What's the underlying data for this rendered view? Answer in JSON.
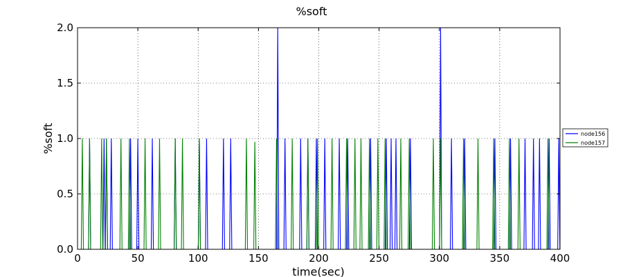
{
  "chart_data": {
    "type": "line",
    "title": "%soft",
    "xlabel": "time(sec)",
    "ylabel": "%soft",
    "xlim": [
      0,
      400
    ],
    "ylim": [
      0,
      2.0
    ],
    "xticks": [
      0,
      50,
      100,
      150,
      200,
      250,
      300,
      350,
      400
    ],
    "xtick_labels": [
      "0",
      "50",
      "100",
      "150",
      "200",
      "250",
      "300",
      "350",
      "400"
    ],
    "yticks": [
      0.0,
      0.5,
      1.0,
      1.5,
      2.0
    ],
    "ytick_labels": [
      "0.0",
      "0.5",
      "1.0",
      "1.5",
      "2.0"
    ],
    "grid": true,
    "legend_position": "right",
    "series": [
      {
        "name": "node156",
        "color": "#0000ff",
        "spikes": [
          {
            "x": 10,
            "y": 1.0
          },
          {
            "x": 22,
            "y": 1.0
          },
          {
            "x": 24,
            "y": 1.0
          },
          {
            "x": 28,
            "y": 1.0
          },
          {
            "x": 44,
            "y": 1.0
          },
          {
            "x": 50,
            "y": 1.0
          },
          {
            "x": 62,
            "y": 1.0
          },
          {
            "x": 81,
            "y": 1.0
          },
          {
            "x": 101,
            "y": 1.0
          },
          {
            "x": 107,
            "y": 1.0
          },
          {
            "x": 121,
            "y": 1.0
          },
          {
            "x": 127,
            "y": 1.0
          },
          {
            "x": 166,
            "y": 2.0
          },
          {
            "x": 172,
            "y": 1.0
          },
          {
            "x": 185,
            "y": 1.0
          },
          {
            "x": 191,
            "y": 1.0
          },
          {
            "x": 198,
            "y": 1.0
          },
          {
            "x": 205,
            "y": 1.0
          },
          {
            "x": 217,
            "y": 1.0
          },
          {
            "x": 224,
            "y": 1.0
          },
          {
            "x": 243,
            "y": 1.0
          },
          {
            "x": 256,
            "y": 1.0
          },
          {
            "x": 260,
            "y": 1.0
          },
          {
            "x": 264,
            "y": 1.0
          },
          {
            "x": 276,
            "y": 1.0
          },
          {
            "x": 301,
            "y": 2.0
          },
          {
            "x": 310,
            "y": 1.0
          },
          {
            "x": 321,
            "y": 1.0
          },
          {
            "x": 346,
            "y": 1.0
          },
          {
            "x": 359,
            "y": 1.0
          },
          {
            "x": 371,
            "y": 1.0
          },
          {
            "x": 378,
            "y": 1.0
          },
          {
            "x": 383,
            "y": 1.0
          },
          {
            "x": 391,
            "y": 1.0
          },
          {
            "x": 399,
            "y": 1.0
          }
        ]
      },
      {
        "name": "node157",
        "color": "#008000",
        "spikes": [
          {
            "x": 4,
            "y": 1.0
          },
          {
            "x": 10,
            "y": 1.0
          },
          {
            "x": 20,
            "y": 1.0
          },
          {
            "x": 24,
            "y": 1.0
          },
          {
            "x": 36,
            "y": 1.0
          },
          {
            "x": 43,
            "y": 1.0
          },
          {
            "x": 56,
            "y": 1.0
          },
          {
            "x": 68,
            "y": 1.0
          },
          {
            "x": 81,
            "y": 1.0
          },
          {
            "x": 87,
            "y": 1.0
          },
          {
            "x": 101,
            "y": 1.0
          },
          {
            "x": 140,
            "y": 1.0
          },
          {
            "x": 147,
            "y": 0.97
          },
          {
            "x": 165,
            "y": 1.0
          },
          {
            "x": 178,
            "y": 1.0
          },
          {
            "x": 191,
            "y": 1.0
          },
          {
            "x": 199,
            "y": 1.0
          },
          {
            "x": 211,
            "y": 1.0
          },
          {
            "x": 223,
            "y": 1.0
          },
          {
            "x": 230,
            "y": 1.0
          },
          {
            "x": 235,
            "y": 1.0
          },
          {
            "x": 242,
            "y": 1.0
          },
          {
            "x": 249,
            "y": 1.0
          },
          {
            "x": 255,
            "y": 1.0
          },
          {
            "x": 268,
            "y": 1.0
          },
          {
            "x": 275,
            "y": 1.0
          },
          {
            "x": 295,
            "y": 1.0
          },
          {
            "x": 301,
            "y": 1.0
          },
          {
            "x": 320,
            "y": 1.0
          },
          {
            "x": 332,
            "y": 1.0
          },
          {
            "x": 345,
            "y": 1.0
          },
          {
            "x": 358,
            "y": 1.0
          },
          {
            "x": 366,
            "y": 1.0
          },
          {
            "x": 390,
            "y": 1.0
          }
        ]
      }
    ]
  }
}
